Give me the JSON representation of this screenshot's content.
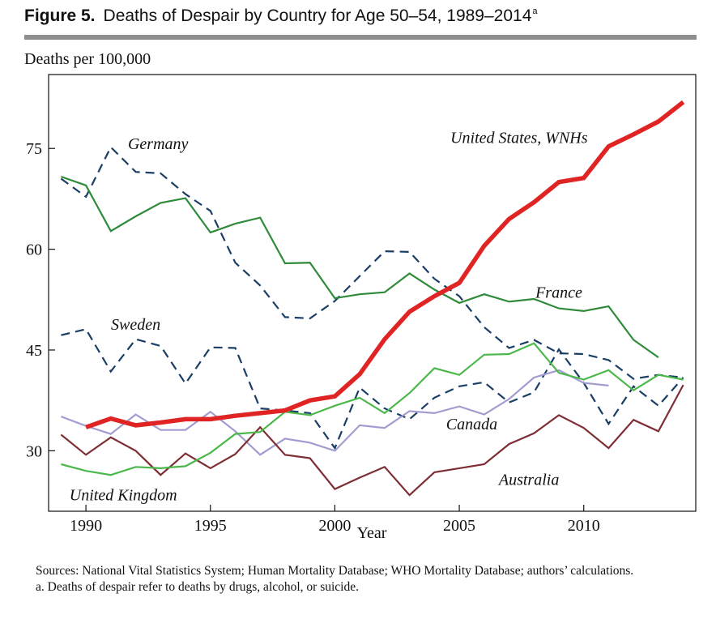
{
  "figure": {
    "number": "Figure 5.",
    "title": "Deaths of Despair by Country for Age 50–54, 1989–2014",
    "title_marker": "a"
  },
  "notes": {
    "sources": "Sources: National Vital Statistics System; Human Mortality Database; WHO Mortality Database; authors’ calculations.",
    "footnote": "a. Deaths of despair refer to deaths by drugs, alcohol, or suicide."
  },
  "chart_data": {
    "type": "line",
    "title": "Deaths of Despair by Country for Age 50–54, 1989–2014",
    "xlabel": "Year",
    "ylabel": "Deaths per 100,000",
    "xlim": [
      1988.5,
      2014.5
    ],
    "ylim": [
      21,
      86
    ],
    "xticks": [
      1990,
      1995,
      2000,
      2005,
      2010
    ],
    "yticks": [
      30,
      45,
      60,
      75
    ],
    "grid": false,
    "legend": "inline labels",
    "series": [
      {
        "name": "United States, WNHs",
        "color": "#e02424",
        "style": "solid",
        "weight": "thick",
        "x": [
          1990,
          1991,
          1992,
          1993,
          1994,
          1995,
          1996,
          1997,
          1998,
          1999,
          2000,
          2001,
          2002,
          2003,
          2004,
          2005,
          2006,
          2007,
          2008,
          2009,
          2010,
          2011,
          2012,
          2013,
          2014
        ],
        "y": [
          33.5,
          34.8,
          33.8,
          34.2,
          34.7,
          34.7,
          35.2,
          35.6,
          36.0,
          37.5,
          38.1,
          41.4,
          46.6,
          50.7,
          53.0,
          55.0,
          60.5,
          64.5,
          67.0,
          70.0,
          70.6,
          75.3,
          77.1,
          79.0,
          81.9
        ]
      },
      {
        "name": "Germany",
        "color": "#1a3e66",
        "style": "dashed",
        "weight": "normal",
        "x": [
          1989,
          1990,
          1991,
          1992,
          1993,
          1994,
          1995,
          1996,
          1997,
          1998,
          1999,
          2000,
          2001,
          2002,
          2003,
          2004,
          2005,
          2006,
          2007,
          2008,
          2009,
          2010,
          2011,
          2012,
          2013,
          2014
        ],
        "y": [
          70.5,
          67.8,
          75.2,
          71.5,
          71.3,
          68.2,
          65.7,
          58.0,
          54.6,
          49.9,
          49.7,
          52.3,
          56.0,
          59.7,
          59.6,
          55.6,
          53.0,
          48.4,
          45.3,
          46.5,
          44.5,
          44.4,
          43.5,
          40.7,
          41.3,
          40.9
        ]
      },
      {
        "name": "France",
        "color": "#2e8b3a",
        "style": "solid",
        "weight": "normal",
        "x": [
          1989,
          1990,
          1991,
          1992,
          1993,
          1994,
          1995,
          1996,
          1997,
          1998,
          1999,
          2000,
          2001,
          2002,
          2003,
          2004,
          2005,
          2006,
          2007,
          2008,
          2009,
          2010,
          2011,
          2012,
          2013
        ],
        "y": [
          70.8,
          69.5,
          62.7,
          64.9,
          66.9,
          67.6,
          62.5,
          63.8,
          64.7,
          57.9,
          58.0,
          52.7,
          53.3,
          53.6,
          56.4,
          54.0,
          52.0,
          53.3,
          52.2,
          52.6,
          51.2,
          50.8,
          51.5,
          46.5,
          43.9
        ]
      },
      {
        "name": "Sweden",
        "color": "#1a3e66",
        "style": "dashed",
        "weight": "normal",
        "x": [
          1989,
          1990,
          1991,
          1992,
          1993,
          1994,
          1995,
          1996,
          1997,
          1998,
          1999,
          2000,
          2001,
          2002,
          2003,
          2004,
          2005,
          2006,
          2007,
          2008,
          2009,
          2010,
          2011,
          2012,
          2013,
          2014
        ],
        "y": [
          47.2,
          48.1,
          41.8,
          46.6,
          45.6,
          40.0,
          45.4,
          45.3,
          36.3,
          36.0,
          35.6,
          30.4,
          39.4,
          36.3,
          34.7,
          37.9,
          39.6,
          40.2,
          37.2,
          38.7,
          45.1,
          40.1,
          34.0,
          39.6,
          36.7,
          40.9
        ]
      },
      {
        "name": "Canada",
        "color": "#4cb84c",
        "style": "solid",
        "weight": "normal",
        "x": [
          1989,
          1990,
          1991,
          1992,
          1993,
          1994,
          1995,
          1996,
          1997,
          1998,
          1999,
          2000,
          2001,
          2002,
          2003,
          2004,
          2005,
          2006,
          2007,
          2008,
          2009,
          2010,
          2011,
          2012,
          2013,
          2014
        ],
        "y": [
          28.0,
          27.0,
          26.4,
          27.6,
          27.4,
          27.7,
          29.7,
          32.5,
          32.8,
          35.8,
          35.3,
          36.7,
          37.9,
          35.6,
          38.6,
          42.3,
          41.3,
          44.3,
          44.4,
          46.0,
          41.6,
          40.6,
          42.0,
          39.0,
          41.3,
          40.6
        ]
      },
      {
        "name": "United Kingdom",
        "color": "#a39cd0",
        "style": "solid",
        "weight": "normal",
        "x": [
          1989,
          1990,
          1991,
          1992,
          1993,
          1994,
          1995,
          1996,
          1997,
          1998,
          1999,
          2000,
          2001,
          2002,
          2003,
          2004,
          2005,
          2006,
          2007,
          2008,
          2009,
          2010,
          2011
        ],
        "y": [
          35.1,
          33.7,
          32.5,
          35.4,
          33.1,
          33.1,
          35.8,
          32.9,
          29.4,
          31.8,
          31.2,
          30.0,
          33.8,
          33.4,
          35.9,
          35.6,
          36.6,
          35.4,
          37.7,
          40.9,
          42.0,
          40.1,
          39.7
        ]
      },
      {
        "name": "Australia",
        "color": "#7e2e34",
        "style": "solid",
        "weight": "normal",
        "x": [
          1989,
          1990,
          1991,
          1992,
          1993,
          1994,
          1995,
          1996,
          1997,
          1998,
          1999,
          2000,
          2001,
          2002,
          2003,
          2004,
          2005,
          2006,
          2007,
          2008,
          2009,
          2010,
          2011,
          2012,
          2013,
          2014
        ],
        "y": [
          32.4,
          29.4,
          32.0,
          30.0,
          26.4,
          29.6,
          27.4,
          29.5,
          33.5,
          29.4,
          28.9,
          24.3,
          26.0,
          27.6,
          23.4,
          26.8,
          27.4,
          28.0,
          31.0,
          32.6,
          35.3,
          33.4,
          30.4,
          34.6,
          32.9,
          39.8
        ]
      }
    ],
    "labels": [
      {
        "text": "Germany",
        "x": 1992.9,
        "y": 74.9
      },
      {
        "text": "United States, WNHs",
        "x": 2007.4,
        "y": 75.8
      },
      {
        "text": "France",
        "x": 2009.0,
        "y": 52.8
      },
      {
        "text": "Sweden",
        "x": 1992.0,
        "y": 48.0
      },
      {
        "text": "Canada",
        "x": 2005.5,
        "y": 33.2
      },
      {
        "text": "Australia",
        "x": 2007.8,
        "y": 24.9
      },
      {
        "text": "United Kingdom",
        "x": 1991.5,
        "y": 22.6
      }
    ]
  }
}
